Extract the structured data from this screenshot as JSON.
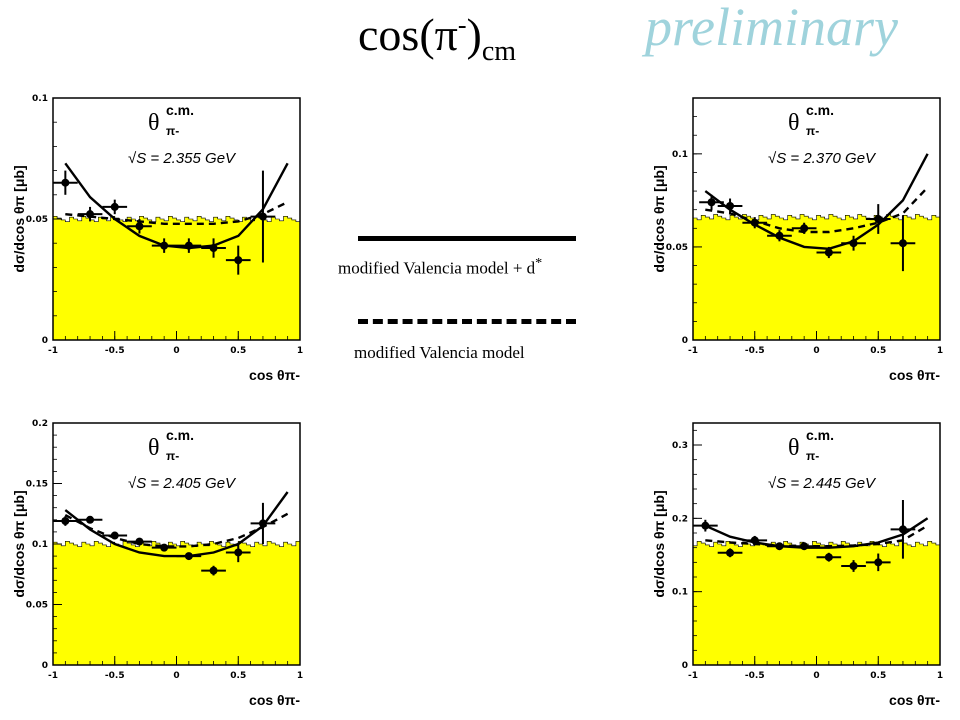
{
  "title": {
    "text": "cos(π",
    "sup": "-",
    "close": ")",
    "sub": "cm"
  },
  "watermark": "preliminary",
  "legend": {
    "solid_label": "modified Valencia model + d",
    "solid_sup": "*",
    "dashed_label": "modified Valencia model"
  },
  "colors": {
    "histogram_fill": "#ffff00",
    "watermark": "#9fd3dc",
    "ink": "#000000"
  },
  "chart_data": [
    {
      "type": "scatter",
      "panel_label": "θ",
      "panel_label_sup": "c.m.",
      "panel_label_sub": "π-",
      "energy_label": "√S = 2.355 GeV",
      "xlabel": "cos θπ-",
      "ylabel": "dσ/dcos θπ [μb]",
      "xlim": [
        -1,
        1
      ],
      "ylim": [
        0,
        0.1
      ],
      "xticks": [
        "-1",
        "-0.5",
        "0",
        "0.5",
        "1"
      ],
      "yticks": [
        "0",
        "0.05",
        "0.1"
      ],
      "histogram_level": 0.05,
      "points": [
        {
          "x": -0.9,
          "y": 0.065,
          "xerr": 0.1,
          "yerr": 0.005
        },
        {
          "x": -0.7,
          "y": 0.052,
          "xerr": 0.1,
          "yerr": 0.003
        },
        {
          "x": -0.5,
          "y": 0.055,
          "xerr": 0.1,
          "yerr": 0.003
        },
        {
          "x": -0.3,
          "y": 0.047,
          "xerr": 0.1,
          "yerr": 0.003
        },
        {
          "x": -0.1,
          "y": 0.039,
          "xerr": 0.1,
          "yerr": 0.003
        },
        {
          "x": 0.1,
          "y": 0.039,
          "xerr": 0.1,
          "yerr": 0.003
        },
        {
          "x": 0.3,
          "y": 0.038,
          "xerr": 0.1,
          "yerr": 0.004
        },
        {
          "x": 0.5,
          "y": 0.033,
          "xerr": 0.1,
          "yerr": 0.006
        },
        {
          "x": 0.7,
          "y": 0.051,
          "xerr": 0.1,
          "yerr": 0.019
        }
      ],
      "solid_curve": {
        "x": [
          -0.9,
          -0.7,
          -0.5,
          -0.3,
          -0.1,
          0.1,
          0.3,
          0.5,
          0.7,
          0.9
        ],
        "y": [
          0.073,
          0.059,
          0.05,
          0.043,
          0.039,
          0.038,
          0.039,
          0.043,
          0.054,
          0.073
        ]
      },
      "dashed_curve": {
        "x": [
          -0.9,
          -0.7,
          -0.5,
          -0.3,
          -0.1,
          0.1,
          0.3,
          0.5,
          0.7,
          0.9
        ],
        "y": [
          0.052,
          0.051,
          0.05,
          0.049,
          0.048,
          0.048,
          0.048,
          0.049,
          0.052,
          0.057
        ]
      }
    },
    {
      "type": "scatter",
      "panel_label": "θ",
      "panel_label_sup": "c.m.",
      "panel_label_sub": "π-",
      "energy_label": "√S = 2.370 GeV",
      "xlabel": "cos θπ-",
      "ylabel": "dσ/dcos θπ [μb]",
      "xlim": [
        -1,
        1
      ],
      "ylim": [
        0,
        0.13
      ],
      "xticks": [
        "-1",
        "-0.5",
        "0",
        "0.5",
        "1"
      ],
      "yticks": [
        "0",
        "0.05",
        "0.1"
      ],
      "histogram_level": 0.066,
      "points": [
        {
          "x": -0.85,
          "y": 0.074,
          "xerr": 0.1,
          "yerr": 0.004
        },
        {
          "x": -0.7,
          "y": 0.072,
          "xerr": 0.1,
          "yerr": 0.004
        },
        {
          "x": -0.5,
          "y": 0.063,
          "xerr": 0.1,
          "yerr": 0.003
        },
        {
          "x": -0.3,
          "y": 0.056,
          "xerr": 0.1,
          "yerr": 0.003
        },
        {
          "x": -0.1,
          "y": 0.06,
          "xerr": 0.1,
          "yerr": 0.003
        },
        {
          "x": 0.1,
          "y": 0.047,
          "xerr": 0.1,
          "yerr": 0.003
        },
        {
          "x": 0.3,
          "y": 0.052,
          "xerr": 0.1,
          "yerr": 0.004
        },
        {
          "x": 0.5,
          "y": 0.065,
          "xerr": 0.1,
          "yerr": 0.008
        },
        {
          "x": 0.7,
          "y": 0.052,
          "xerr": 0.1,
          "yerr": 0.015
        }
      ],
      "solid_curve": {
        "x": [
          -0.9,
          -0.7,
          -0.5,
          -0.3,
          -0.1,
          0.1,
          0.3,
          0.5,
          0.7,
          0.9
        ],
        "y": [
          0.08,
          0.07,
          0.062,
          0.055,
          0.05,
          0.049,
          0.053,
          0.062,
          0.075,
          0.1
        ]
      },
      "dashed_curve": {
        "x": [
          -0.9,
          -0.7,
          -0.5,
          -0.3,
          -0.1,
          0.1,
          0.3,
          0.5,
          0.7,
          0.9
        ],
        "y": [
          0.07,
          0.068,
          0.064,
          0.06,
          0.058,
          0.058,
          0.06,
          0.063,
          0.068,
          0.082
        ]
      }
    },
    {
      "type": "scatter",
      "panel_label": "θ",
      "panel_label_sup": "c.m.",
      "panel_label_sub": "π-",
      "energy_label": "√S = 2.405 GeV",
      "xlabel": "cos θπ-",
      "ylabel": "dσ/dcos θπ [μb]",
      "xlim": [
        -1,
        1
      ],
      "ylim": [
        0,
        0.2
      ],
      "xticks": [
        "-1",
        "-0.5",
        "0",
        "0.5",
        "1"
      ],
      "yticks": [
        "0",
        "0.05",
        "0.1",
        "0.15",
        "0.2"
      ],
      "histogram_level": 0.1,
      "points": [
        {
          "x": -0.9,
          "y": 0.119,
          "xerr": 0.1,
          "yerr": 0.004
        },
        {
          "x": -0.7,
          "y": 0.12,
          "xerr": 0.1,
          "yerr": 0.003
        },
        {
          "x": -0.5,
          "y": 0.107,
          "xerr": 0.1,
          "yerr": 0.003
        },
        {
          "x": -0.3,
          "y": 0.102,
          "xerr": 0.1,
          "yerr": 0.003
        },
        {
          "x": -0.1,
          "y": 0.097,
          "xerr": 0.1,
          "yerr": 0.003
        },
        {
          "x": 0.1,
          "y": 0.09,
          "xerr": 0.1,
          "yerr": 0.003
        },
        {
          "x": 0.3,
          "y": 0.078,
          "xerr": 0.1,
          "yerr": 0.004
        },
        {
          "x": 0.5,
          "y": 0.093,
          "xerr": 0.1,
          "yerr": 0.008
        },
        {
          "x": 0.7,
          "y": 0.117,
          "xerr": 0.1,
          "yerr": 0.017
        }
      ],
      "solid_curve": {
        "x": [
          -0.9,
          -0.7,
          -0.5,
          -0.3,
          -0.1,
          0.1,
          0.3,
          0.5,
          0.7,
          0.9
        ],
        "y": [
          0.128,
          0.112,
          0.1,
          0.093,
          0.09,
          0.09,
          0.093,
          0.1,
          0.115,
          0.143
        ]
      },
      "dashed_curve": {
        "x": [
          -0.9,
          -0.7,
          -0.5,
          -0.3,
          -0.1,
          0.1,
          0.3,
          0.5,
          0.7,
          0.9
        ],
        "y": [
          0.124,
          0.113,
          0.105,
          0.1,
          0.098,
          0.098,
          0.1,
          0.105,
          0.114,
          0.125
        ]
      }
    },
    {
      "type": "scatter",
      "panel_label": "θ",
      "panel_label_sup": "c.m.",
      "panel_label_sub": "π-",
      "energy_label": "√S = 2.445 GeV",
      "xlabel": "cos θπ-",
      "ylabel": "dσ/dcos θπ [μb]",
      "xlim": [
        -1,
        1
      ],
      "ylim": [
        0,
        0.33
      ],
      "xticks": [
        "-1",
        "-0.5",
        "0",
        "0.5",
        "1"
      ],
      "yticks": [
        "0",
        "0.1",
        "0.2",
        "0.3"
      ],
      "histogram_level": 0.165,
      "points": [
        {
          "x": -0.9,
          "y": 0.19,
          "xerr": 0.1,
          "yerr": 0.008
        },
        {
          "x": -0.7,
          "y": 0.153,
          "xerr": 0.1,
          "yerr": 0.006
        },
        {
          "x": -0.5,
          "y": 0.17,
          "xerr": 0.1,
          "yerr": 0.006
        },
        {
          "x": -0.3,
          "y": 0.162,
          "xerr": 0.1,
          "yerr": 0.005
        },
        {
          "x": -0.1,
          "y": 0.162,
          "xerr": 0.1,
          "yerr": 0.005
        },
        {
          "x": 0.1,
          "y": 0.147,
          "xerr": 0.1,
          "yerr": 0.006
        },
        {
          "x": 0.3,
          "y": 0.135,
          "xerr": 0.1,
          "yerr": 0.008
        },
        {
          "x": 0.5,
          "y": 0.14,
          "xerr": 0.1,
          "yerr": 0.012
        },
        {
          "x": 0.7,
          "y": 0.185,
          "xerr": 0.1,
          "yerr": 0.04
        }
      ],
      "solid_curve": {
        "x": [
          -0.9,
          -0.7,
          -0.5,
          -0.3,
          -0.1,
          0.1,
          0.3,
          0.5,
          0.7,
          0.9
        ],
        "y": [
          0.19,
          0.175,
          0.167,
          0.162,
          0.16,
          0.16,
          0.162,
          0.167,
          0.178,
          0.2
        ]
      },
      "dashed_curve": {
        "x": [
          -0.9,
          -0.7,
          -0.5,
          -0.3,
          -0.1,
          0.1,
          0.3,
          0.5,
          0.7,
          0.9
        ],
        "y": [
          0.17,
          0.167,
          0.165,
          0.163,
          0.162,
          0.162,
          0.163,
          0.165,
          0.17,
          0.19
        ]
      }
    }
  ]
}
